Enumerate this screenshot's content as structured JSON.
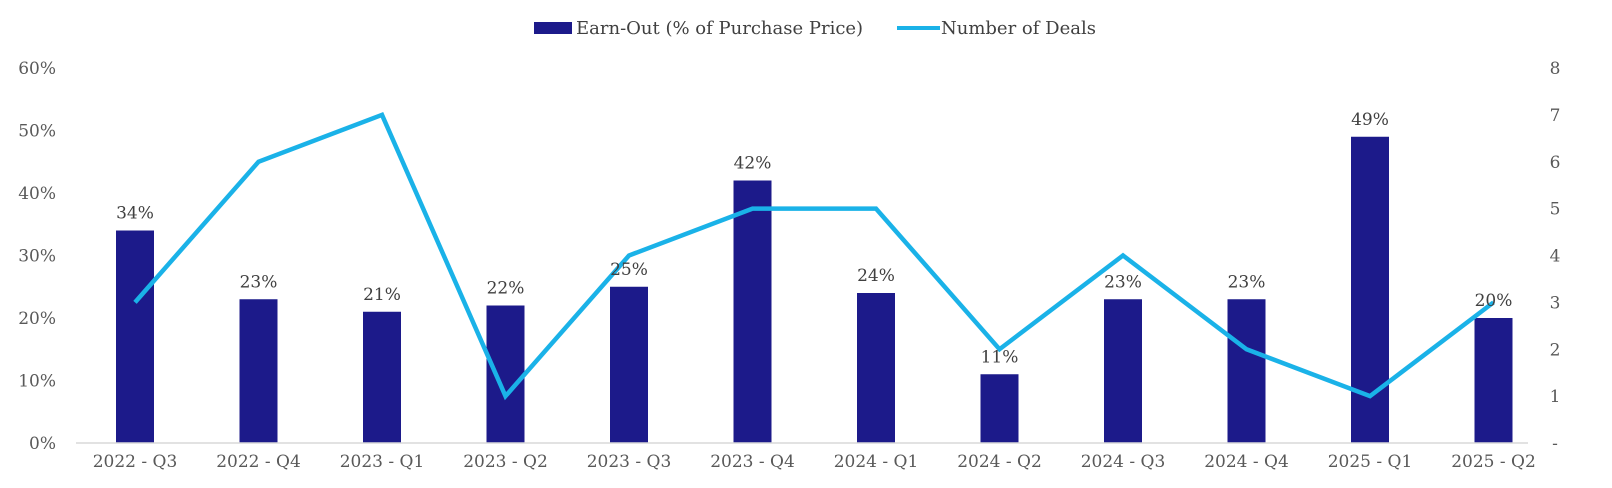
{
  "chart_data": {
    "type": "bar",
    "title": "",
    "categories": [
      "2022 - Q3",
      "2022 - Q4",
      "2023 - Q1",
      "2023 - Q2",
      "2023 - Q3",
      "2023 - Q4",
      "2024 - Q1",
      "2024 - Q2",
      "2024 - Q3",
      "2024 - Q4",
      "2025 - Q1",
      "2025 - Q2"
    ],
    "series": [
      {
        "name": "Earn-Out (% of Purchase Price)",
        "kind": "bar",
        "axis": "left",
        "color": "#1c1a8a",
        "values": [
          34,
          23,
          21,
          22,
          25,
          42,
          24,
          11,
          23,
          23,
          49,
          20
        ],
        "labels": [
          "34%",
          "23%",
          "21%",
          "22%",
          "25%",
          "42%",
          "24%",
          "11%",
          "23%",
          "23%",
          "49%",
          "20%"
        ]
      },
      {
        "name": "Number of Deals",
        "kind": "line",
        "axis": "right",
        "color": "#1ab2e8",
        "values": [
          3,
          6,
          7,
          1,
          4,
          5,
          5,
          2,
          4,
          2,
          1,
          3
        ]
      }
    ],
    "left_axis": {
      "min": 0,
      "max": 60,
      "ticks": [
        0,
        10,
        20,
        30,
        40,
        50,
        60
      ],
      "tick_labels": [
        "0%",
        "10%",
        "20%",
        "30%",
        "40%",
        "50%",
        "60%"
      ]
    },
    "right_axis": {
      "min": 0,
      "max": 8,
      "ticks": [
        0,
        1,
        2,
        3,
        4,
        5,
        6,
        7,
        8
      ],
      "tick_labels": [
        "-",
        "1",
        "2",
        "3",
        "4",
        "5",
        "6",
        "7",
        "8"
      ]
    },
    "legend": {
      "placement": "top-center",
      "entries": [
        "Earn-Out (% of Purchase Price)",
        "Number of Deals"
      ]
    },
    "grid": false
  }
}
